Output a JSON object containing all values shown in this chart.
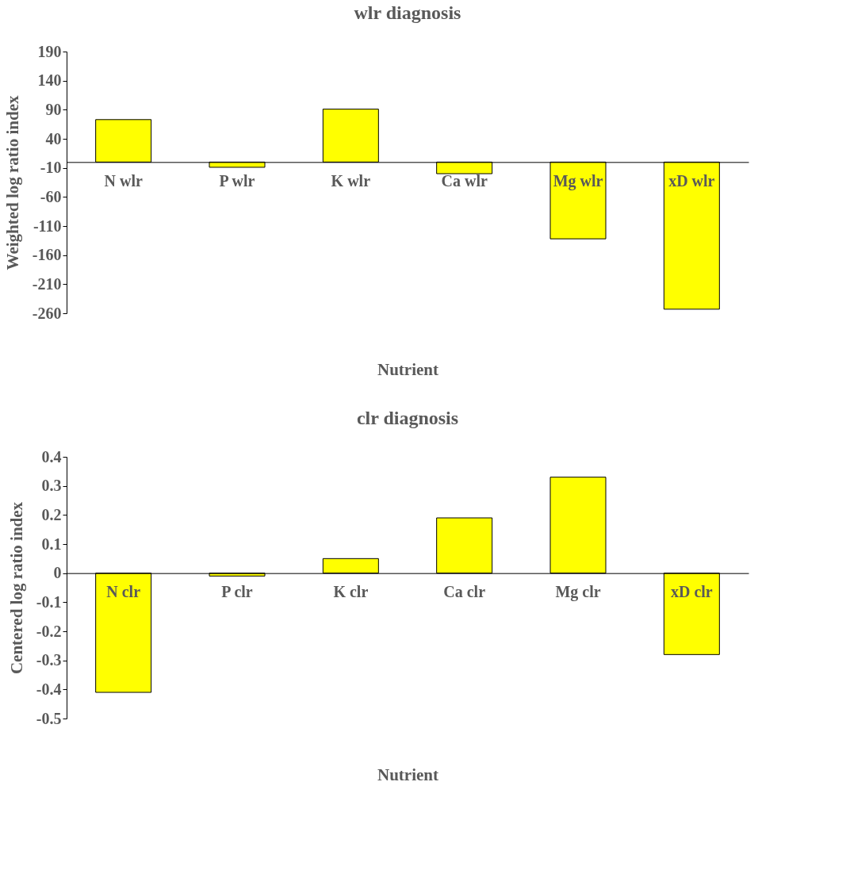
{
  "chart_data": [
    {
      "type": "bar",
      "title": "wlr diagnosis",
      "xlabel": "Nutrient",
      "ylabel": "Weighted log ratio index",
      "categories": [
        "N wlr",
        "P wlr",
        "K wlr",
        "Ca wlr",
        "Mg wlr",
        "xD wlr"
      ],
      "values": [
        73,
        -9,
        91,
        -20,
        -132,
        -253
      ],
      "color": "#ffff00",
      "ylim": [
        -260,
        190
      ],
      "yticks": [
        -260,
        -210,
        -160,
        -110,
        -60,
        -10,
        40,
        90,
        140,
        190
      ],
      "grid": false
    },
    {
      "type": "bar",
      "title": "clr diagnosis",
      "xlabel": "Nutrient",
      "ylabel": "Centered log ratio index",
      "categories": [
        "N clr",
        "P clr",
        "K clr",
        "Ca clr",
        "Mg clr",
        "xD clr"
      ],
      "values": [
        -0.41,
        -0.01,
        0.05,
        0.19,
        0.33,
        -0.28
      ],
      "color": "#ffff00",
      "ylim": [
        -0.5,
        0.4
      ],
      "yticks": [
        -0.5,
        -0.4,
        -0.3,
        -0.2,
        -0.1,
        0,
        0.1,
        0.2,
        0.3,
        0.4
      ],
      "grid": false
    }
  ]
}
